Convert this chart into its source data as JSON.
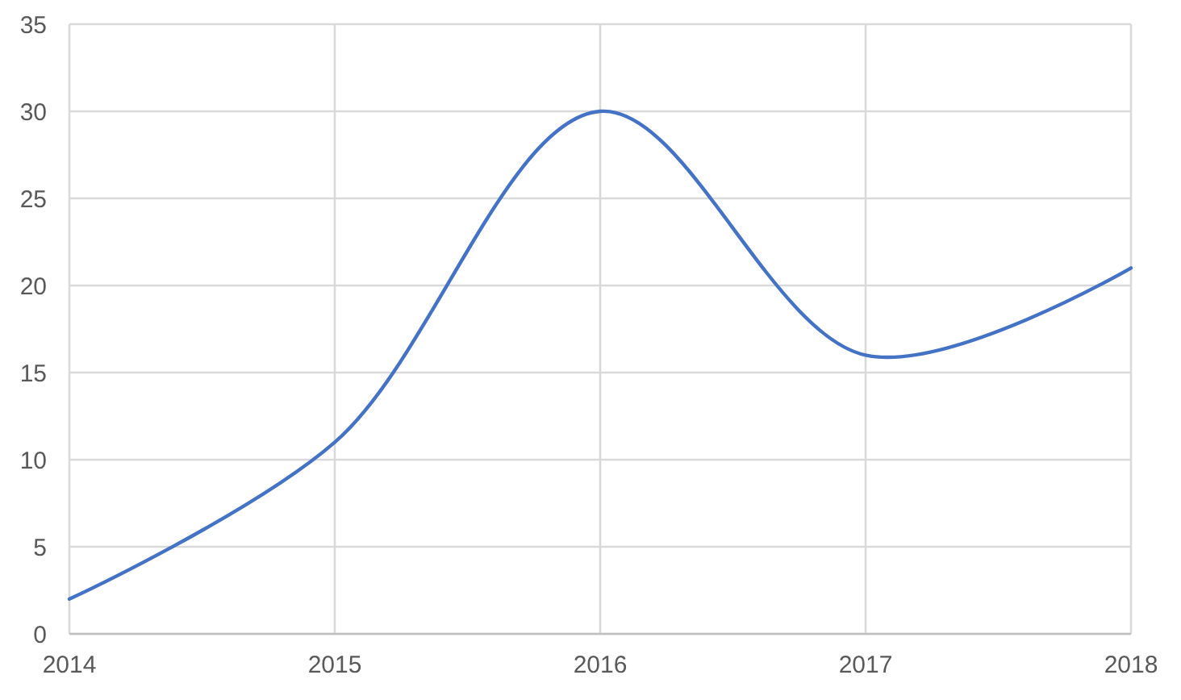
{
  "chart_data": {
    "type": "line",
    "x": [
      2014,
      2015,
      2016,
      2017,
      2018
    ],
    "series": [
      {
        "color": "#4472c4",
        "values": [
          2,
          11,
          30,
          16,
          21
        ]
      }
    ],
    "xlim": [
      2014,
      2018
    ],
    "xticks": [
      2014,
      2015,
      2016,
      2017,
      2018
    ],
    "ylim": [
      0,
      35
    ],
    "yticks": [
      0,
      5,
      10,
      15,
      20,
      25,
      30,
      35
    ],
    "grid": true,
    "marker": "none",
    "line_style": "solid"
  }
}
